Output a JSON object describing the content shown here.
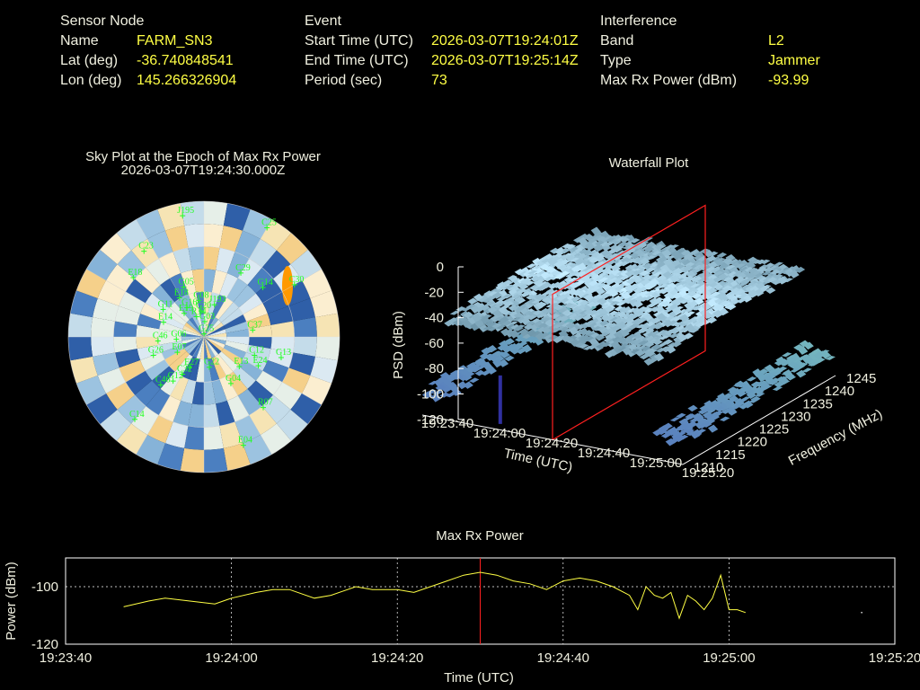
{
  "info": {
    "sensor": {
      "heading": "Sensor Node",
      "name_label": "Name",
      "name": "FARM_SN3",
      "lat_label": "Lat (deg)",
      "lat": "-36.740848541",
      "lon_label": "Lon (deg)",
      "lon": "145.266326904"
    },
    "event": {
      "heading": "Event",
      "start_label": "Start Time (UTC)",
      "start": "2026-03-07T19:24:01Z",
      "end_label": "End Time (UTC)",
      "end": "2026-03-07T19:25:14Z",
      "period_label": "Period (sec)",
      "period": "73"
    },
    "interference": {
      "heading": "Interference",
      "band_label": "Band",
      "band": "L2",
      "type_label": "Type",
      "type": "Jammer",
      "power_label": "Max Rx Power (dBm)",
      "power": "-93.99"
    }
  },
  "chart_data": [
    {
      "type": "polar-sky",
      "title": "Sky Plot at the Epoch of Max Rx Power",
      "subtitle": "2026-03-07T19:24:30.000Z",
      "colors": {
        "sat": "#22ff22",
        "peak": "#ff9900",
        "grid": "#e0e0e0"
      },
      "satellites": [
        {
          "id": "G25",
          "az": 1,
          "el": 88
        },
        {
          "id": "G03",
          "az": 3,
          "el": 80
        },
        {
          "id": "R14",
          "az": -20,
          "el": 76
        },
        {
          "id": "G20",
          "az": -6,
          "el": 73
        },
        {
          "id": "G16",
          "az": -30,
          "el": 68
        },
        {
          "id": "E19",
          "az": -40,
          "el": 70
        },
        {
          "id": "J193",
          "az": 18,
          "el": 68
        },
        {
          "id": "E18",
          "az": -32,
          "el": 60
        },
        {
          "id": "G08",
          "az": -8,
          "el": 66
        },
        {
          "id": "G05",
          "az": -22,
          "el": 55
        },
        {
          "id": "G11",
          "az": -56,
          "el": 58
        },
        {
          "id": "E14",
          "az": -70,
          "el": 62
        },
        {
          "id": "C29",
          "az": 30,
          "el": 42
        },
        {
          "id": "G14",
          "az": 50,
          "el": 40
        },
        {
          "id": "C37",
          "az": 82,
          "el": 58
        },
        {
          "id": "G06",
          "az": -95,
          "el": 72
        },
        {
          "id": "C46",
          "az": -95,
          "el": 60
        },
        {
          "id": "C23",
          "az": -35,
          "el": 22
        },
        {
          "id": "E18b",
          "az": -50,
          "el": 30
        },
        {
          "id": "C30",
          "az": 60,
          "el": 22
        },
        {
          "id": "J195",
          "az": -10,
          "el": 10
        },
        {
          "id": "C25",
          "az": 30,
          "el": 8
        },
        {
          "id": "G26",
          "az": -110,
          "el": 55
        },
        {
          "id": "G13",
          "az": 105,
          "el": 38
        },
        {
          "id": "C12",
          "az": 110,
          "el": 55
        },
        {
          "id": "E24",
          "az": 118,
          "el": 50
        },
        {
          "id": "R07",
          "az": 140,
          "el": 30
        },
        {
          "id": "E13",
          "az": 130,
          "el": 60
        },
        {
          "id": "G04",
          "az": 150,
          "el": 55
        },
        {
          "id": "C14",
          "az": -140,
          "el": 20
        },
        {
          "id": "E04",
          "az": 160,
          "el": 15
        },
        {
          "id": "E07",
          "az": -120,
          "el": 70
        },
        {
          "id": "G12",
          "az": -145,
          "el": 55
        },
        {
          "id": "C46b",
          "az": -138,
          "el": 48
        },
        {
          "id": "C32",
          "az": -150,
          "el": 62
        },
        {
          "id": "E27",
          "az": -155,
          "el": 68
        },
        {
          "id": "G22",
          "az": 170,
          "el": 70
        }
      ]
    },
    {
      "type": "surface-3d",
      "title": "Waterfall Plot",
      "zlabel": "PSD (dBm)",
      "xlabel": "Time (UTC)",
      "ylabel": "Frequency (MHz)",
      "z_ticks": [
        "0",
        "-20",
        "-40",
        "-60",
        "-80",
        "-100",
        "-120"
      ],
      "time_ticks": [
        "19:23:40",
        "19:24:00",
        "19:24:20",
        "19:24:40",
        "19:25:00",
        "19:25:20"
      ],
      "freq_ticks": [
        "1210",
        "1215",
        "1220",
        "1225",
        "1230",
        "1235",
        "1240",
        "1245"
      ],
      "zlim": [
        -120,
        0
      ],
      "cursor_time": "19:24:30",
      "colors": {
        "cursor": "#ff2020",
        "spike": "#3030a0"
      }
    },
    {
      "type": "line",
      "title": "Max Rx Power",
      "xlabel": "Time (UTC)",
      "ylabel": "Power (dBm)",
      "x_ticks": [
        "19:23:40",
        "19:24:00",
        "19:24:20",
        "19:24:40",
        "19:25:00",
        "19:25:20"
      ],
      "y_ticks": [
        "-100",
        "-120"
      ],
      "xlim": [
        "19:23:40",
        "19:25:20"
      ],
      "ylim": [
        -120,
        -90
      ],
      "grid": true,
      "cursor_x": "19:24:30",
      "colors": {
        "line": "#ffff44",
        "cursor": "#ff2020"
      },
      "series": [
        {
          "x": [
            "19:23:47",
            "19:23:50",
            "19:23:52",
            "19:23:55",
            "19:23:58",
            "19:24:00",
            "19:24:03",
            "19:24:05",
            "19:24:07",
            "19:24:10",
            "19:24:12",
            "19:24:15",
            "19:24:17",
            "19:24:20",
            "19:24:22",
            "19:24:24",
            "19:24:26",
            "19:24:28",
            "19:24:30",
            "19:24:32",
            "19:24:34",
            "19:24:36",
            "19:24:38",
            "19:24:40",
            "19:24:42",
            "19:24:44",
            "19:24:46",
            "19:24:48",
            "19:24:49",
            "19:24:50",
            "19:24:51",
            "19:24:52",
            "19:24:53",
            "19:24:54",
            "19:24:55",
            "19:24:56",
            "19:24:57",
            "19:24:58",
            "19:24:59",
            "19:25:00",
            "19:25:01",
            "19:25:02"
          ],
          "y": [
            -107,
            -105,
            -104,
            -105,
            -106,
            -104,
            -102,
            -101,
            -101,
            -104,
            -103,
            -100,
            -101,
            -101,
            -102,
            -100,
            -98,
            -96,
            -95,
            -96,
            -98,
            -99,
            -101,
            -98,
            -97,
            -98,
            -100,
            -103,
            -108,
            -100,
            -103,
            -104,
            -102,
            -111,
            -103,
            -105,
            -108,
            -104,
            -96,
            -108,
            -108,
            -109
          ]
        }
      ],
      "tail_point": {
        "x": "19:25:16",
        "y": -109
      }
    }
  ]
}
